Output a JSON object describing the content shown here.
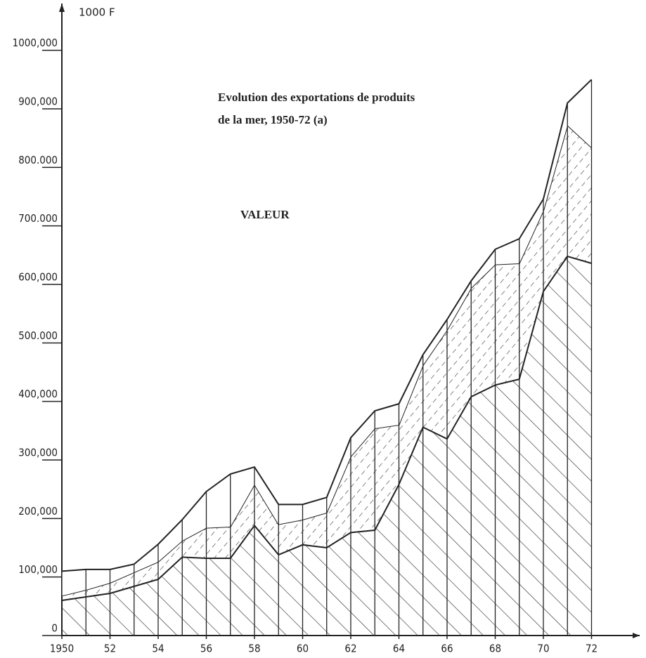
{
  "chart_data": {
    "type": "stacked_area",
    "title_lines": [
      "Evolution des exportations de produits",
      "de la mer, 1950-72 (a)"
    ],
    "annotation": "VALEUR",
    "y_axis_label": "1000 F",
    "x": [
      1950,
      1951,
      1952,
      1953,
      1954,
      1955,
      1956,
      1957,
      1958,
      1959,
      1960,
      1961,
      1962,
      1963,
      1964,
      1965,
      1966,
      1967,
      1968,
      1969,
      1970,
      1971,
      1972
    ],
    "series": [
      {
        "color": "#222222",
        "hatch": "backslash",
        "values": [
          60000,
          66000,
          72000,
          84000,
          96000,
          134000,
          132000,
          132000,
          188000,
          138000,
          155000,
          150000,
          176000,
          180000,
          258000,
          356000,
          336000,
          408000,
          428000,
          438000,
          588000,
          648000,
          636000
        ]
      },
      {
        "color": "#222222",
        "hatch": "dashed-slash",
        "values": [
          8000,
          12000,
          18000,
          24000,
          30000,
          28000,
          52000,
          54000,
          70000,
          52000,
          43000,
          60000,
          130000,
          174000,
          102000,
          106000,
          186000,
          186000,
          206000,
          198000,
          138000,
          224000,
          198000
        ]
      },
      {
        "color": "#222222",
        "hatch": "none",
        "values": [
          42000,
          35000,
          23000,
          14000,
          30000,
          36000,
          62000,
          90000,
          30000,
          34000,
          26000,
          26000,
          32000,
          30000,
          36000,
          18000,
          18000,
          12000,
          26000,
          42000,
          20000,
          38000,
          116000
        ]
      }
    ],
    "xlim": [
      1950,
      1974
    ],
    "xticks": [
      {
        "value": 1950,
        "label": "1950"
      },
      {
        "value": 1952,
        "label": "52"
      },
      {
        "value": 1954,
        "label": "54"
      },
      {
        "value": 1956,
        "label": "56"
      },
      {
        "value": 1958,
        "label": "58"
      },
      {
        "value": 1960,
        "label": "60"
      },
      {
        "value": 1962,
        "label": "62"
      },
      {
        "value": 1964,
        "label": "64"
      },
      {
        "value": 1966,
        "label": "66"
      },
      {
        "value": 1968,
        "label": "68"
      },
      {
        "value": 1970,
        "label": "70"
      },
      {
        "value": 1972,
        "label": "72"
      }
    ],
    "ylim": [
      0,
      1080000
    ],
    "yticks": [
      0,
      {
        "value": 100000,
        "label": "100,000"
      },
      {
        "value": 200000,
        "label": "200,000"
      },
      {
        "value": 300000,
        "label": "300,000"
      },
      {
        "value": 400000,
        "label": "400,000"
      },
      {
        "value": 500000,
        "label": "500.000"
      },
      {
        "value": 600000,
        "label": "600,000"
      },
      {
        "value": 700000,
        "label": "700.000"
      },
      {
        "value": 800000,
        "label": "800.000"
      },
      {
        "value": 900000,
        "label": "900,000"
      },
      {
        "value": 1000000,
        "label": "1000,000"
      }
    ],
    "drop_lines": true
  }
}
